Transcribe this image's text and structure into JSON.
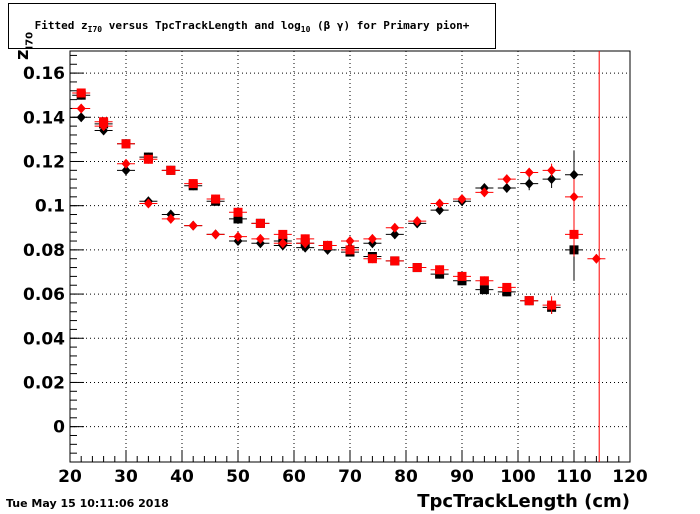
{
  "header": {
    "title_pre": "Fitted  z",
    "title_sub1": "I70",
    "title_mid": "  versus TpcTrackLength and log",
    "title_sub2": "10",
    "title_post": " (β γ) for Primary pion+"
  },
  "footer": {
    "timestamp": "Tue May 15 10:11:06 2018"
  },
  "axis_labels": {
    "x": "TpcTrackLength (cm)",
    "y_main": "z",
    "y_sub": "I70"
  },
  "chart_data": {
    "type": "scatter",
    "xlim": [
      20,
      120
    ],
    "ylim": [
      -0.016,
      0.17
    ],
    "x_ticks": [
      20,
      30,
      40,
      50,
      60,
      70,
      80,
      90,
      100,
      110,
      120
    ],
    "y_ticks": [
      0,
      0.02,
      0.04,
      0.06,
      0.08,
      0.1,
      0.12,
      0.14,
      0.16
    ],
    "y_tick_labels": [
      "0",
      "0.02",
      "0.04",
      "0.06",
      "0.08",
      "0.1",
      "0.12",
      "0.14",
      "0.16"
    ],
    "grid": true,
    "vertical_line_x": 114.5,
    "series": [
      {
        "color": "#000000",
        "marker": "square",
        "points": [
          [
            22,
            0.15
          ],
          [
            26,
            0.137
          ],
          [
            30,
            0.128
          ],
          [
            34,
            0.122
          ],
          [
            38,
            0.116
          ],
          [
            42,
            0.109
          ],
          [
            46,
            0.102
          ],
          [
            50,
            0.094
          ],
          [
            54,
            0.092
          ],
          [
            58,
            0.084
          ],
          [
            62,
            0.083
          ],
          [
            66,
            0.082
          ],
          [
            70,
            0.079
          ],
          [
            74,
            0.077
          ],
          [
            78,
            0.075
          ],
          [
            82,
            0.072
          ],
          [
            86,
            0.069
          ],
          [
            90,
            0.066
          ],
          [
            94,
            0.062
          ],
          [
            98,
            0.061
          ],
          [
            102,
            0.057
          ],
          [
            106,
            0.054
          ],
          [
            110,
            0.08
          ]
        ],
        "yerr": [
          0.002,
          0.002,
          0.002,
          0.002,
          0.002,
          0.002,
          0.002,
          0.002,
          0.002,
          0.002,
          0.002,
          0.002,
          0.002,
          0.002,
          0.002,
          0.002,
          0.002,
          0.002,
          0.002,
          0.002,
          0.002,
          0.003,
          0.014
        ]
      },
      {
        "color": "#000000",
        "marker": "diamond",
        "points": [
          [
            22,
            0.14
          ],
          [
            26,
            0.134
          ],
          [
            30,
            0.116
          ],
          [
            34,
            0.102
          ],
          [
            38,
            0.096
          ],
          [
            42,
            0.091
          ],
          [
            46,
            0.087
          ],
          [
            50,
            0.084
          ],
          [
            54,
            0.083
          ],
          [
            58,
            0.082
          ],
          [
            62,
            0.081
          ],
          [
            66,
            0.08
          ],
          [
            70,
            0.081
          ],
          [
            74,
            0.083
          ],
          [
            78,
            0.087
          ],
          [
            82,
            0.092
          ],
          [
            86,
            0.098
          ],
          [
            90,
            0.102
          ],
          [
            94,
            0.108
          ],
          [
            98,
            0.108
          ],
          [
            102,
            0.11
          ],
          [
            106,
            0.112
          ],
          [
            110,
            0.114
          ]
        ],
        "yerr": [
          0.002,
          0.002,
          0.002,
          0.002,
          0.002,
          0.002,
          0.002,
          0.002,
          0.002,
          0.002,
          0.002,
          0.002,
          0.002,
          0.002,
          0.002,
          0.002,
          0.002,
          0.002,
          0.002,
          0.002,
          0.003,
          0.004,
          0.011
        ]
      },
      {
        "color": "#ff0000",
        "marker": "square",
        "points": [
          [
            22,
            0.151
          ],
          [
            26,
            0.138
          ],
          [
            30,
            0.128
          ],
          [
            34,
            0.121
          ],
          [
            38,
            0.116
          ],
          [
            42,
            0.11
          ],
          [
            46,
            0.103
          ],
          [
            50,
            0.097
          ],
          [
            54,
            0.092
          ],
          [
            58,
            0.087
          ],
          [
            62,
            0.085
          ],
          [
            66,
            0.082
          ],
          [
            70,
            0.08
          ],
          [
            74,
            0.076
          ],
          [
            78,
            0.075
          ],
          [
            82,
            0.072
          ],
          [
            86,
            0.071
          ],
          [
            90,
            0.068
          ],
          [
            94,
            0.066
          ],
          [
            98,
            0.063
          ],
          [
            102,
            0.057
          ],
          [
            106,
            0.055
          ],
          [
            110,
            0.087
          ]
        ],
        "yerr": [
          0.002,
          0.002,
          0.002,
          0.002,
          0.002,
          0.002,
          0.002,
          0.002,
          0.002,
          0.002,
          0.002,
          0.002,
          0.002,
          0.002,
          0.002,
          0.002,
          0.002,
          0.002,
          0.002,
          0.002,
          0.002,
          0.004,
          0.01
        ]
      },
      {
        "color": "#ff0000",
        "marker": "diamond",
        "points": [
          [
            22,
            0.144
          ],
          [
            26,
            0.136
          ],
          [
            30,
            0.119
          ],
          [
            34,
            0.101
          ],
          [
            38,
            0.094
          ],
          [
            42,
            0.091
          ],
          [
            46,
            0.087
          ],
          [
            50,
            0.086
          ],
          [
            54,
            0.085
          ],
          [
            58,
            0.083
          ],
          [
            62,
            0.083
          ],
          [
            66,
            0.082
          ],
          [
            70,
            0.084
          ],
          [
            74,
            0.085
          ],
          [
            78,
            0.09
          ],
          [
            82,
            0.093
          ],
          [
            86,
            0.101
          ],
          [
            90,
            0.103
          ],
          [
            94,
            0.106
          ],
          [
            98,
            0.112
          ],
          [
            102,
            0.115
          ],
          [
            106,
            0.116
          ],
          [
            110,
            0.104
          ],
          [
            114,
            0.076
          ]
        ],
        "yerr": [
          0.002,
          0.002,
          0.002,
          0.002,
          0.002,
          0.002,
          0.002,
          0.002,
          0.002,
          0.002,
          0.002,
          0.002,
          0.002,
          0.002,
          0.002,
          0.002,
          0.002,
          0.002,
          0.002,
          0.002,
          0.002,
          0.003,
          0.008,
          0.002
        ]
      }
    ]
  }
}
